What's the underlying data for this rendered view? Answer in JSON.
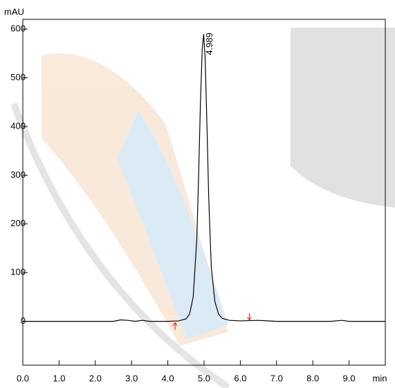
{
  "chart_data": {
    "type": "line",
    "y_label": "mAU",
    "x_label": "min",
    "x": [
      0,
      2.5,
      2.7,
      2.9,
      3.1,
      3.3,
      3.5,
      4.0,
      4.3,
      4.5,
      4.6,
      4.7,
      4.8,
      4.85,
      4.9,
      4.95,
      4.989,
      5.03,
      5.08,
      5.13,
      5.2,
      5.3,
      5.4,
      5.5,
      5.7,
      6.0,
      6.5,
      7.0,
      8.5,
      8.8,
      9.0,
      10
    ],
    "series": [
      {
        "color": "#000000",
        "values": [
          0,
          0,
          3,
          2,
          0,
          2,
          0,
          0,
          1,
          5,
          15,
          50,
          170,
          300,
          450,
          560,
          590,
          540,
          400,
          250,
          110,
          40,
          15,
          6,
          2,
          1,
          2,
          0,
          0,
          2,
          0,
          0
        ]
      }
    ],
    "peak_label": {
      "x": 4.989,
      "y": 590,
      "text": "4.989"
    },
    "baseline_markers": {
      "color": "#ff0000",
      "x": [
        4.2,
        6.25
      ]
    },
    "xlim": [
      0,
      10
    ],
    "xticks": [
      {
        "value": 0,
        "label": "0.0"
      },
      {
        "value": 1,
        "label": "1.0"
      },
      {
        "value": 2,
        "label": "2.0"
      },
      {
        "value": 3,
        "label": "3.0"
      },
      {
        "value": 4,
        "label": "4.0"
      },
      {
        "value": 5,
        "label": "5.0"
      },
      {
        "value": 6,
        "label": "6.0"
      },
      {
        "value": 7,
        "label": "7.0"
      },
      {
        "value": 8,
        "label": "8.0"
      },
      {
        "value": 9,
        "label": "9.0"
      }
    ],
    "ylim": [
      -90,
      620
    ],
    "yticks": [
      0,
      100,
      200,
      300,
      400,
      500,
      600
    ]
  }
}
